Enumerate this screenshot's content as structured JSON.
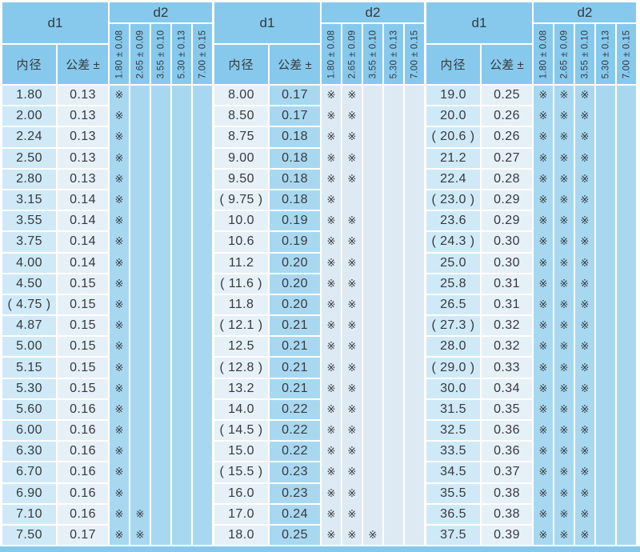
{
  "colors": {
    "base": "#87c9ec",
    "mid": "#a8d8f0",
    "light": "#cfe9f7",
    "pale": "#e6f0f7",
    "stripe_pale": "#ddeaf3",
    "text": "#36393d",
    "white": "#ffffff"
  },
  "chart_data": {
    "type": "table",
    "title": "",
    "mark_symbol": "※",
    "header": {
      "d1_label": "d1",
      "d2_label": "d2",
      "id_label": "内径",
      "tolerance_label": "公差 ±",
      "d2_columns": [
        "1.80 ± 0.08",
        "2.65 ± 0.09",
        "3.55 ± 0.10",
        "5.30 ± 0.13",
        "7.00 ± 0.15"
      ]
    },
    "columns": [
      "内径",
      "公差 ±",
      "1.80 ± 0.08",
      "2.65 ± 0.09",
      "3.55 ± 0.10",
      "5.30 ± 0.13",
      "7.00 ± 0.15"
    ],
    "sections": [
      {
        "palette": "a",
        "rows": [
          [
            "1.80",
            "0.13",
            [
              1,
              0,
              0,
              0,
              0
            ]
          ],
          [
            "2.00",
            "0.13",
            [
              1,
              0,
              0,
              0,
              0
            ]
          ],
          [
            "2.24",
            "0.13",
            [
              1,
              0,
              0,
              0,
              0
            ]
          ],
          [
            "2.50",
            "0.13",
            [
              1,
              0,
              0,
              0,
              0
            ]
          ],
          [
            "2.80",
            "0.13",
            [
              1,
              0,
              0,
              0,
              0
            ]
          ],
          [
            "3.15",
            "0.14",
            [
              1,
              0,
              0,
              0,
              0
            ]
          ],
          [
            "3.55",
            "0.14",
            [
              1,
              0,
              0,
              0,
              0
            ]
          ],
          [
            "3.75",
            "0.14",
            [
              1,
              0,
              0,
              0,
              0
            ]
          ],
          [
            "4.00",
            "0.14",
            [
              1,
              0,
              0,
              0,
              0
            ]
          ],
          [
            "4.50",
            "0.15",
            [
              1,
              0,
              0,
              0,
              0
            ]
          ],
          [
            "( 4.75 )",
            "0.15",
            [
              1,
              0,
              0,
              0,
              0
            ]
          ],
          [
            "4.87",
            "0.15",
            [
              1,
              0,
              0,
              0,
              0
            ]
          ],
          [
            "5.00",
            "0.15",
            [
              1,
              0,
              0,
              0,
              0
            ]
          ],
          [
            "5.15",
            "0.15",
            [
              1,
              0,
              0,
              0,
              0
            ]
          ],
          [
            "5.30",
            "0.15",
            [
              1,
              0,
              0,
              0,
              0
            ]
          ],
          [
            "5.60",
            "0.16",
            [
              1,
              0,
              0,
              0,
              0
            ]
          ],
          [
            "6.00",
            "0.16",
            [
              1,
              0,
              0,
              0,
              0
            ]
          ],
          [
            "6.30",
            "0.16",
            [
              1,
              0,
              0,
              0,
              0
            ]
          ],
          [
            "6.70",
            "0.16",
            [
              1,
              0,
              0,
              0,
              0
            ]
          ],
          [
            "6.90",
            "0.16",
            [
              1,
              0,
              0,
              0,
              0
            ]
          ],
          [
            "7.10",
            "0.16",
            [
              1,
              1,
              0,
              0,
              0
            ]
          ],
          [
            "7.50",
            "0.17",
            [
              1,
              1,
              0,
              0,
              0
            ]
          ]
        ]
      },
      {
        "palette": "b",
        "rows": [
          [
            "8.00",
            "0.17",
            [
              1,
              1,
              0,
              0,
              0
            ]
          ],
          [
            "8.50",
            "0.17",
            [
              1,
              1,
              0,
              0,
              0
            ]
          ],
          [
            "8.75",
            "0.18",
            [
              1,
              1,
              0,
              0,
              0
            ]
          ],
          [
            "9.00",
            "0.18",
            [
              1,
              1,
              0,
              0,
              0
            ]
          ],
          [
            "9.50",
            "0.18",
            [
              1,
              1,
              0,
              0,
              0
            ]
          ],
          [
            "( 9.75 )",
            "0.18",
            [
              1,
              0,
              0,
              0,
              0
            ]
          ],
          [
            "10.0",
            "0.19",
            [
              1,
              1,
              0,
              0,
              0
            ]
          ],
          [
            "10.6",
            "0.19",
            [
              1,
              1,
              0,
              0,
              0
            ]
          ],
          [
            "11.2",
            "0.20",
            [
              1,
              1,
              0,
              0,
              0
            ]
          ],
          [
            "( 11.6 )",
            "0.20",
            [
              1,
              1,
              0,
              0,
              0
            ]
          ],
          [
            "11.8",
            "0.20",
            [
              1,
              1,
              0,
              0,
              0
            ]
          ],
          [
            "( 12.1 )",
            "0.21",
            [
              1,
              1,
              0,
              0,
              0
            ]
          ],
          [
            "12.5",
            "0.21",
            [
              1,
              1,
              0,
              0,
              0
            ]
          ],
          [
            "( 12.8 )",
            "0.21",
            [
              1,
              1,
              0,
              0,
              0
            ]
          ],
          [
            "13.2",
            "0.21",
            [
              1,
              1,
              0,
              0,
              0
            ]
          ],
          [
            "14.0",
            "0.22",
            [
              1,
              1,
              0,
              0,
              0
            ]
          ],
          [
            "( 14.5 )",
            "0.22",
            [
              1,
              1,
              0,
              0,
              0
            ]
          ],
          [
            "15.0",
            "0.22",
            [
              1,
              1,
              0,
              0,
              0
            ]
          ],
          [
            "( 15.5 )",
            "0.23",
            [
              1,
              1,
              0,
              0,
              0
            ]
          ],
          [
            "16.0",
            "0.23",
            [
              1,
              1,
              0,
              0,
              0
            ]
          ],
          [
            "17.0",
            "0.24",
            [
              1,
              1,
              0,
              0,
              0
            ]
          ],
          [
            "18.0",
            "0.25",
            [
              1,
              1,
              1,
              0,
              0
            ]
          ]
        ]
      },
      {
        "palette": "a",
        "rows": [
          [
            "19.0",
            "0.25",
            [
              1,
              1,
              1,
              0,
              0
            ]
          ],
          [
            "20.0",
            "0.26",
            [
              1,
              1,
              1,
              0,
              0
            ]
          ],
          [
            "( 20.6 )",
            "0.26",
            [
              1,
              1,
              1,
              0,
              0
            ]
          ],
          [
            "21.2",
            "0.27",
            [
              1,
              1,
              1,
              0,
              0
            ]
          ],
          [
            "22.4",
            "0.28",
            [
              1,
              1,
              1,
              0,
              0
            ]
          ],
          [
            "( 23.0 )",
            "0.29",
            [
              1,
              1,
              1,
              0,
              0
            ]
          ],
          [
            "23.6",
            "0.29",
            [
              1,
              1,
              1,
              0,
              0
            ]
          ],
          [
            "( 24.3 )",
            "0.30",
            [
              1,
              1,
              1,
              0,
              0
            ]
          ],
          [
            "25.0",
            "0.30",
            [
              1,
              1,
              1,
              0,
              0
            ]
          ],
          [
            "25.8",
            "0.31",
            [
              1,
              1,
              1,
              0,
              0
            ]
          ],
          [
            "26.5",
            "0.31",
            [
              1,
              1,
              1,
              0,
              0
            ]
          ],
          [
            "( 27.3 )",
            "0.32",
            [
              1,
              1,
              1,
              0,
              0
            ]
          ],
          [
            "28.0",
            "0.32",
            [
              1,
              1,
              1,
              0,
              0
            ]
          ],
          [
            "( 29.0 )",
            "0.33",
            [
              1,
              1,
              1,
              0,
              0
            ]
          ],
          [
            "30.0",
            "0.34",
            [
              1,
              1,
              1,
              0,
              0
            ]
          ],
          [
            "31.5",
            "0.35",
            [
              1,
              1,
              1,
              0,
              0
            ]
          ],
          [
            "32.5",
            "0.36",
            [
              1,
              1,
              1,
              0,
              0
            ]
          ],
          [
            "33.5",
            "0.36",
            [
              1,
              1,
              1,
              0,
              0
            ]
          ],
          [
            "34.5",
            "0.37",
            [
              1,
              1,
              1,
              0,
              0
            ]
          ],
          [
            "35.5",
            "0.38",
            [
              1,
              1,
              1,
              0,
              0
            ]
          ],
          [
            "36.5",
            "0.38",
            [
              1,
              1,
              1,
              0,
              0
            ]
          ],
          [
            "37.5",
            "0.39",
            [
              1,
              1,
              1,
              0,
              0
            ]
          ]
        ]
      }
    ]
  }
}
